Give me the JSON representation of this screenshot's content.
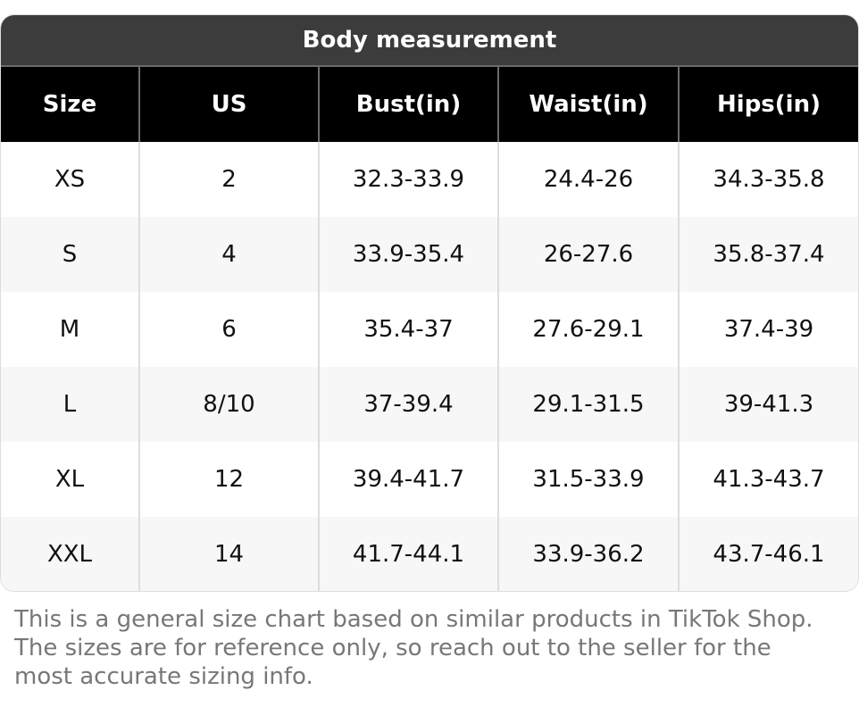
{
  "title": "Body measurement",
  "columns": [
    "Size",
    "US",
    "Bust(in)",
    "Waist(in)",
    "Hips(in)"
  ],
  "rows": [
    [
      "XS",
      "2",
      "32.3-33.9",
      "24.4-26",
      "34.3-35.8"
    ],
    [
      "S",
      "4",
      "33.9-35.4",
      "26-27.6",
      "35.8-37.4"
    ],
    [
      "M",
      "6",
      "35.4-37",
      "27.6-29.1",
      "37.4-39"
    ],
    [
      "L",
      "8/10",
      "37-39.4",
      "29.1-31.5",
      "39-41.3"
    ],
    [
      "XL",
      "12",
      "39.4-41.7",
      "31.5-33.9",
      "41.3-43.7"
    ],
    [
      "XXL",
      "14",
      "41.7-44.1",
      "33.9-36.2",
      "43.7-46.1"
    ]
  ],
  "note": "This is a general size chart based on similar products in TikTok Shop. The sizes are for reference only, so reach out to the seller for the most accurate sizing info.",
  "colors": {
    "title_bg": "#3c3c3c",
    "header_bg": "#000000",
    "alt_row_bg": "#f7f7f7",
    "note_text": "#777777"
  }
}
